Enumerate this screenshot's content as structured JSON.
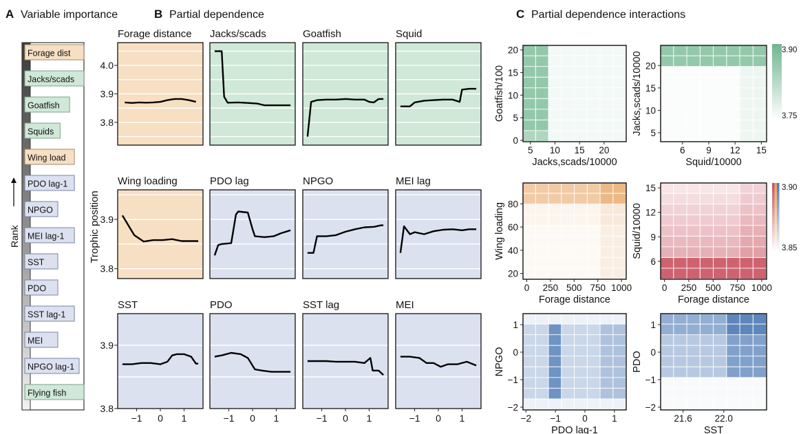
{
  "panels": {
    "a": {
      "letter": "A",
      "title": "Variable importance",
      "rank_label": "Rank"
    },
    "b": {
      "letter": "B",
      "title": "Partial dependence",
      "ylabel": "Trophic position"
    },
    "c": {
      "letter": "C",
      "title": "Partial dependence interactions"
    }
  },
  "colors": {
    "forage": "#f7dfc3",
    "prey": "#cfe8d7",
    "climate": "#dce1f0",
    "line": "#000000",
    "green_high": "#6fb58f",
    "orange_high": "#e5a15c",
    "red_high": "#c8505e",
    "blue_high": "#4b78b5"
  },
  "chart_data": [
    {
      "type": "bar",
      "id": "importance",
      "items": [
        {
          "label": "Forage dist",
          "group": "forage"
        },
        {
          "label": "Jacks/scads",
          "group": "prey"
        },
        {
          "label": "Goatfish",
          "group": "prey"
        },
        {
          "label": "Squids",
          "group": "prey"
        },
        {
          "label": "Wing load",
          "group": "forage"
        },
        {
          "label": "PDO lag-1",
          "group": "climate"
        },
        {
          "label": "NPGO",
          "group": "climate"
        },
        {
          "label": "MEI lag-1",
          "group": "climate"
        },
        {
          "label": "SST",
          "group": "climate"
        },
        {
          "label": "PDO",
          "group": "climate"
        },
        {
          "label": "SST lag-1",
          "group": "climate"
        },
        {
          "label": "MEI",
          "group": "climate"
        },
        {
          "label": "NPGO lag-1",
          "group": "climate"
        },
        {
          "label": "Flying fish",
          "group": "prey"
        }
      ]
    },
    {
      "type": "line",
      "id": "partial-dependence",
      "rows": [
        {
          "yticks": [
            3.8,
            3.9,
            4.0
          ],
          "ylim": [
            3.72,
            4.08
          ],
          "panels": [
            {
              "title": "Forage distance",
              "group": "forage",
              "x": [
                -1.5,
                -1.2,
                -0.9,
                -0.6,
                -0.3,
                0,
                0.3,
                0.6,
                0.9,
                1.2,
                1.5
              ],
              "y": [
                3.87,
                3.868,
                3.87,
                3.869,
                3.87,
                3.872,
                3.878,
                3.882,
                3.882,
                3.878,
                3.872
              ]
            },
            {
              "title": "Jacks/scads",
              "group": "prey",
              "x": [
                -1.6,
                -1.3,
                -1.2,
                -1.05,
                -0.6,
                -0.2,
                0.2,
                0.5,
                0.8,
                1.2,
                1.6
              ],
              "y": [
                4.05,
                4.05,
                3.89,
                3.869,
                3.87,
                3.868,
                3.866,
                3.86,
                3.86,
                3.86,
                3.86
              ]
            },
            {
              "title": "Goatfish",
              "group": "prey",
              "x": [
                -1.6,
                -1.45,
                -1.2,
                -0.8,
                -0.4,
                0,
                0.4,
                0.8,
                1.0,
                1.2,
                1.4,
                1.6
              ],
              "y": [
                3.75,
                3.872,
                3.878,
                3.88,
                3.88,
                3.882,
                3.88,
                3.88,
                3.872,
                3.87,
                3.882,
                3.882
              ]
            },
            {
              "title": "Squid",
              "group": "prey",
              "x": [
                -1.6,
                -1.2,
                -1.0,
                -0.6,
                -0.2,
                0.2,
                0.6,
                0.9,
                1.0,
                1.3,
                1.6
              ],
              "y": [
                3.856,
                3.856,
                3.87,
                3.876,
                3.878,
                3.88,
                3.88,
                3.872,
                3.915,
                3.918,
                3.918
              ]
            }
          ]
        },
        {
          "yticks": [
            3.8,
            3.9
          ],
          "ylim": [
            3.78,
            3.96
          ],
          "panels": [
            {
              "title": "Wing loading",
              "group": "forage",
              "x": [
                -1.6,
                -1.1,
                -0.7,
                -0.3,
                0.1,
                0.5,
                0.9,
                1.3,
                1.6
              ],
              "y": [
                3.908,
                3.868,
                3.855,
                3.858,
                3.858,
                3.86,
                3.856,
                3.856,
                3.856
              ]
            },
            {
              "title": "PDO lag",
              "group": "climate",
              "x": [
                -1.6,
                -1.45,
                -1.3,
                -0.9,
                -0.7,
                -0.6,
                -0.2,
                0.0,
                0.1,
                0.5,
                0.9,
                1.2,
                1.6
              ],
              "y": [
                3.827,
                3.848,
                3.85,
                3.852,
                3.91,
                3.916,
                3.914,
                3.88,
                3.866,
                3.864,
                3.866,
                3.872,
                3.878
              ]
            },
            {
              "title": "NPGO",
              "group": "climate",
              "x": [
                -1.6,
                -1.35,
                -1.2,
                -0.8,
                -0.4,
                0,
                0.4,
                0.8,
                1.2,
                1.5,
                1.6
              ],
              "y": [
                3.832,
                3.832,
                3.866,
                3.866,
                3.868,
                3.875,
                3.88,
                3.884,
                3.885,
                3.888,
                3.888
              ]
            },
            {
              "title": "MEI lag",
              "group": "climate",
              "x": [
                -1.6,
                -1.45,
                -1.2,
                -1.0,
                -0.6,
                -0.2,
                0.2,
                0.6,
                1.0,
                1.3,
                1.6
              ],
              "y": [
                3.832,
                3.886,
                3.87,
                3.874,
                3.87,
                3.876,
                3.879,
                3.88,
                3.878,
                3.88,
                3.88
              ]
            }
          ]
        },
        {
          "yticks": [
            3.8,
            3.9
          ],
          "ylim": [
            3.8,
            3.95
          ],
          "panels": [
            {
              "title": "SST",
              "group": "climate",
              "x": [
                -1.6,
                -1.2,
                -0.8,
                -0.4,
                0,
                0.3,
                0.5,
                0.7,
                1.0,
                1.3,
                1.5,
                1.6
              ],
              "y": [
                3.87,
                3.87,
                3.872,
                3.872,
                3.87,
                3.874,
                3.884,
                3.886,
                3.886,
                3.882,
                3.871,
                3.871
              ]
            },
            {
              "title": "PDO",
              "group": "climate",
              "x": [
                -1.6,
                -1.3,
                -0.9,
                -0.5,
                -0.2,
                0.1,
                0.4,
                0.8,
                1.2,
                1.6
              ],
              "y": [
                3.882,
                3.884,
                3.888,
                3.886,
                3.88,
                3.862,
                3.86,
                3.858,
                3.858,
                3.858
              ]
            },
            {
              "title": "SST lag",
              "group": "climate",
              "x": [
                -1.6,
                -1.2,
                -0.8,
                -0.4,
                0,
                0.4,
                0.8,
                1.05,
                1.15,
                1.4,
                1.6
              ],
              "y": [
                3.875,
                3.875,
                3.875,
                3.874,
                3.874,
                3.874,
                3.872,
                3.88,
                3.86,
                3.86,
                3.853
              ]
            },
            {
              "title": "MEI",
              "group": "climate",
              "x": [
                -1.6,
                -1.2,
                -0.8,
                -0.5,
                -0.2,
                0.1,
                0.4,
                0.8,
                1.2,
                1.6
              ],
              "y": [
                3.882,
                3.882,
                3.88,
                3.872,
                3.872,
                3.866,
                3.87,
                3.87,
                3.874,
                3.868
              ]
            }
          ]
        }
      ],
      "xticks": [
        -1,
        0,
        1
      ],
      "xlim": [
        -1.8,
        1.8
      ]
    },
    {
      "type": "heatmap",
      "id": "interactions",
      "panels": [
        {
          "xlabel": "Jacks,scads/10000",
          "ylabel": "Goatfish/100",
          "xticks": [
            5,
            10,
            15,
            20
          ],
          "yticks": [
            0,
            5,
            10,
            15,
            20
          ],
          "xlim": [
            3.5,
            24.5
          ],
          "ylim": [
            -0.3,
            21
          ],
          "color": "green"
        },
        {
          "xlabel": "Squid/10000",
          "ylabel": "Jacks,scads/10000",
          "xticks": [
            6,
            9,
            12,
            15
          ],
          "yticks": [
            5,
            10,
            15,
            20
          ],
          "xlim": [
            3.5,
            15.6
          ],
          "ylim": [
            3,
            24.5
          ],
          "color": "green",
          "colorbar": {
            "ticks": [
              "3.90",
              "3.75"
            ]
          }
        },
        {
          "xlabel": "Forage distance",
          "ylabel": "Wing loading",
          "xticks": [
            0,
            250,
            500,
            750,
            1000
          ],
          "yticks": [
            20,
            40,
            60,
            80
          ],
          "xlim": [
            -40,
            1050
          ],
          "ylim": [
            15,
            98
          ],
          "color": "orange"
        },
        {
          "xlabel": "Forage distance",
          "ylabel": "Squid/10000",
          "xticks": [
            0,
            250,
            500,
            750,
            1000
          ],
          "yticks": [
            6,
            9,
            12,
            15
          ],
          "xlim": [
            -40,
            1050
          ],
          "ylim": [
            3.8,
            15.6
          ],
          "color": "red",
          "colorbar": {
            "ticks": [
              "3.90",
              "3.85"
            ]
          }
        },
        {
          "xlabel": "PDO lag-1",
          "ylabel": "NPGO",
          "xticks": [
            -2,
            -1,
            0,
            1
          ],
          "yticks": [
            -2,
            -1,
            0,
            1
          ],
          "xlim": [
            -2.1,
            1.4
          ],
          "ylim": [
            -2.1,
            1.4
          ],
          "color": "blue"
        },
        {
          "xlabel": "SST",
          "ylabel": "PDO",
          "xticks": [
            21.6,
            22.0
          ],
          "yticks": [
            -2,
            -1,
            0,
            1
          ],
          "xlim": [
            21.38,
            22.42
          ],
          "ylim": [
            -2.1,
            1.4
          ],
          "color": "blue"
        }
      ]
    }
  ]
}
